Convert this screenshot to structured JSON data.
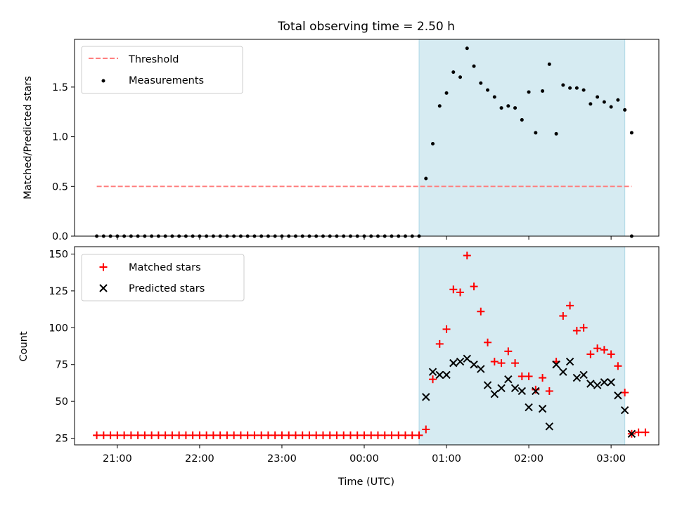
{
  "figure_title": "Total observing time = 2.50 h",
  "colors": {
    "matched": "#ff0000",
    "predicted": "#000000",
    "threshold": "#ff7f7f",
    "measurement": "#000000",
    "shade_fill": "#add8e6",
    "axes": "#000000"
  },
  "chart_data": [
    {
      "type": "scatter",
      "title": "Total observing time = 2.50 h",
      "xlabel": "",
      "ylabel": "Matched/Predicted stars",
      "xlim": [
        20.48,
        3.58
      ],
      "ylim": [
        0,
        1.98
      ],
      "x_axis_type": "time (hours after midnight wrap)",
      "yticks": [
        0.0,
        0.5,
        1.0,
        1.5
      ],
      "ytick_labels": [
        "0.0",
        "0.5",
        "1.0",
        "1.5"
      ],
      "xticks": [
        21.0,
        22.0,
        23.0,
        0.0,
        1.0,
        2.0,
        3.0
      ],
      "grid": false,
      "legend_position": "upper-left",
      "shaded_region_x": [
        0.667,
        3.167
      ],
      "threshold": {
        "name": "Threshold",
        "value": 0.5,
        "x_range": [
          20.75,
          3.25
        ]
      },
      "series": [
        {
          "name": "Measurements",
          "marker": "point",
          "x": [
            "20:45",
            "20:50",
            "20:55",
            "21:00",
            "21:05",
            "21:10",
            "21:15",
            "21:20",
            "21:25",
            "21:30",
            "21:35",
            "21:40",
            "21:45",
            "21:50",
            "21:55",
            "22:00",
            "22:05",
            "22:10",
            "22:15",
            "22:20",
            "22:25",
            "22:30",
            "22:35",
            "22:40",
            "22:45",
            "22:50",
            "22:55",
            "23:00",
            "23:05",
            "23:10",
            "23:15",
            "23:20",
            "23:25",
            "23:30",
            "23:35",
            "23:40",
            "23:45",
            "23:50",
            "23:55",
            "00:00",
            "00:05",
            "00:10",
            "00:15",
            "00:20",
            "00:25",
            "00:30",
            "00:35",
            "00:40",
            "00:45",
            "00:50",
            "00:55",
            "01:00",
            "01:05",
            "01:10",
            "01:15",
            "01:20",
            "01:25",
            "01:30",
            "01:35",
            "01:40",
            "01:45",
            "01:50",
            "01:55",
            "02:00",
            "02:05",
            "02:10",
            "02:15",
            "02:20",
            "02:25",
            "02:30",
            "02:35",
            "02:40",
            "02:45",
            "02:50",
            "02:55",
            "03:00",
            "03:05",
            "03:10",
            "03:15"
          ],
          "y": [
            0,
            0,
            0,
            0,
            0,
            0,
            0,
            0,
            0,
            0,
            0,
            0,
            0,
            0,
            0,
            0,
            0,
            0,
            0,
            0,
            0,
            0,
            0,
            0,
            0,
            0,
            0,
            0,
            0,
            0,
            0,
            0,
            0,
            0,
            0,
            0,
            0,
            0,
            0,
            0,
            0,
            0,
            0,
            0,
            0,
            0,
            0,
            0,
            0.58,
            0.93,
            1.31,
            1.44,
            1.65,
            1.6,
            1.89,
            1.71,
            1.54,
            1.47,
            1.4,
            1.29,
            1.31,
            1.29,
            1.17,
            1.45,
            1.04,
            1.46,
            1.73,
            1.03,
            1.52,
            1.49,
            1.49,
            1.47,
            1.33,
            1.4,
            1.35,
            1.3,
            1.37,
            1.27,
            1.04
          ]
        },
        {
          "name": "",
          "marker": "point",
          "x": [
            "03:15"
          ],
          "y": [
            0
          ]
        }
      ]
    },
    {
      "type": "scatter",
      "xlabel": "Time (UTC)",
      "ylabel": "Count",
      "xlim": [
        20.48,
        3.58
      ],
      "ylim": [
        20.5,
        155
      ],
      "yticks": [
        25,
        50,
        75,
        100,
        125,
        150
      ],
      "ytick_labels": [
        "25",
        "50",
        "75",
        "100",
        "125",
        "150"
      ],
      "xticks": [
        21.0,
        22.0,
        23.0,
        0.0,
        1.0,
        2.0,
        3.0
      ],
      "xtick_labels": [
        "21:00",
        "22:00",
        "23:00",
        "00:00",
        "01:00",
        "02:00",
        "03:00"
      ],
      "grid": false,
      "legend_position": "upper-left",
      "shaded_region_x": [
        0.667,
        3.167
      ],
      "series": [
        {
          "name": "Matched stars",
          "marker": "plus",
          "x": [
            "20:45",
            "20:50",
            "20:55",
            "21:00",
            "21:05",
            "21:10",
            "21:15",
            "21:20",
            "21:25",
            "21:30",
            "21:35",
            "21:40",
            "21:45",
            "21:50",
            "21:55",
            "22:00",
            "22:05",
            "22:10",
            "22:15",
            "22:20",
            "22:25",
            "22:30",
            "22:35",
            "22:40",
            "22:45",
            "22:50",
            "22:55",
            "23:00",
            "23:05",
            "23:10",
            "23:15",
            "23:20",
            "23:25",
            "23:30",
            "23:35",
            "23:40",
            "23:45",
            "23:50",
            "23:55",
            "00:00",
            "00:05",
            "00:10",
            "00:15",
            "00:20",
            "00:25",
            "00:30",
            "00:35",
            "00:40",
            "00:45",
            "00:50",
            "00:55",
            "01:00",
            "01:05",
            "01:10",
            "01:15",
            "01:20",
            "01:25",
            "01:30",
            "01:35",
            "01:40",
            "01:45",
            "01:50",
            "01:55",
            "02:00",
            "02:05",
            "02:10",
            "02:15",
            "02:20",
            "02:25",
            "02:30",
            "02:35",
            "02:40",
            "02:45",
            "02:50",
            "02:55",
            "03:00",
            "03:05",
            "03:10",
            "03:15",
            "03:20",
            "03:25"
          ],
          "y": [
            27,
            27,
            27,
            27,
            27,
            27,
            27,
            27,
            27,
            27,
            27,
            27,
            27,
            27,
            27,
            27,
            27,
            27,
            27,
            27,
            27,
            27,
            27,
            27,
            27,
            27,
            27,
            27,
            27,
            27,
            27,
            27,
            27,
            27,
            27,
            27,
            27,
            27,
            27,
            27,
            27,
            27,
            27,
            27,
            27,
            27,
            27,
            27,
            31,
            65,
            89,
            99,
            126,
            124,
            149,
            128,
            111,
            90,
            77,
            76,
            84,
            76,
            67,
            67,
            58,
            66,
            57,
            77,
            108,
            115,
            98,
            100,
            82,
            86,
            85,
            82,
            74,
            56,
            28,
            29,
            29
          ]
        },
        {
          "name": "Predicted stars",
          "marker": "x",
          "x": [
            "00:45",
            "00:50",
            "00:55",
            "01:00",
            "01:05",
            "01:10",
            "01:15",
            "01:20",
            "01:25",
            "01:30",
            "01:35",
            "01:40",
            "01:45",
            "01:50",
            "01:55",
            "02:00",
            "02:05",
            "02:10",
            "02:15",
            "02:20",
            "02:25",
            "02:30",
            "02:35",
            "02:40",
            "02:45",
            "02:50",
            "02:55",
            "03:00",
            "03:05",
            "03:10",
            "03:15"
          ],
          "y": [
            53,
            70,
            68,
            68,
            76,
            77,
            79,
            75,
            72,
            61,
            55,
            59,
            65,
            59,
            57,
            46,
            57,
            45,
            33,
            75,
            70,
            77,
            66,
            68,
            62,
            61,
            63,
            63,
            54,
            44,
            28
          ]
        }
      ]
    }
  ]
}
